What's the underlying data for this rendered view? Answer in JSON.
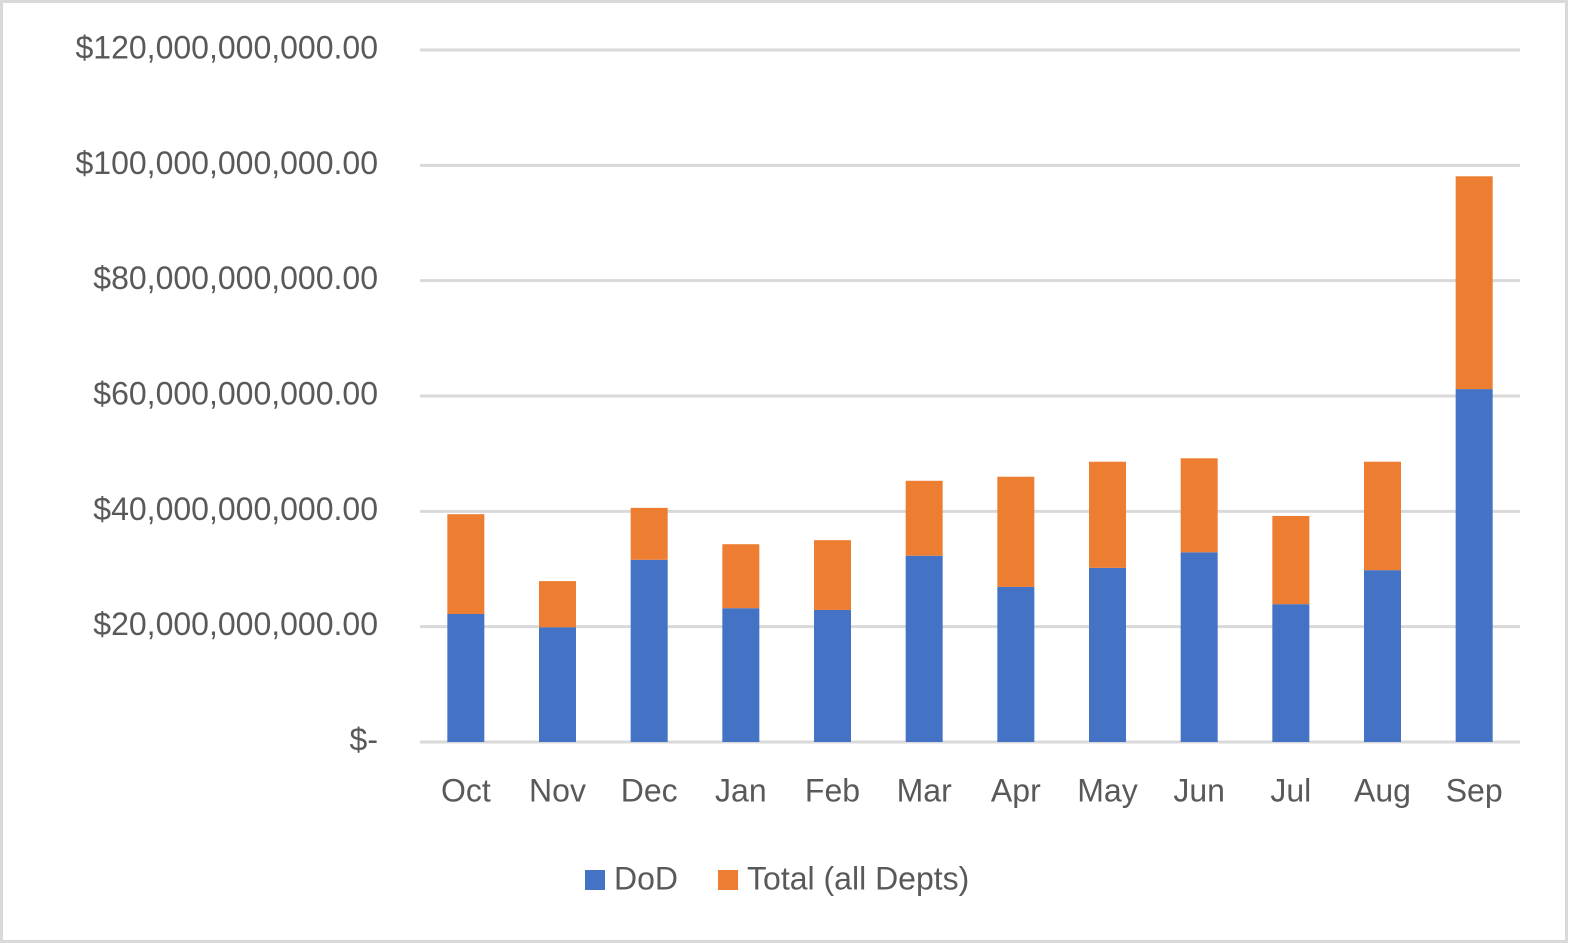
{
  "chart_data": {
    "type": "stacked_bar",
    "categories": [
      "Oct",
      "Nov",
      "Dec",
      "Jan",
      "Feb",
      "Mar",
      "Apr",
      "May",
      "Jun",
      "Jul",
      "Aug",
      "Sep"
    ],
    "series": [
      {
        "name": "DoD",
        "color": "#4472c4",
        "values": [
          22200000000,
          19900000000,
          31600000000,
          23200000000,
          22900000000,
          32300000000,
          26900000000,
          30200000000,
          32900000000,
          23900000000,
          29800000000,
          61200000000
        ]
      },
      {
        "name": "Total (all Depts)",
        "color": "#ed7d31",
        "values": [
          17300000000,
          8000000000,
          9000000000,
          11100000000,
          12100000000,
          13000000000,
          19100000000,
          18400000000,
          16300000000,
          15300000000,
          18800000000,
          36900000000
        ]
      }
    ],
    "ylim": [
      0,
      120000000000
    ],
    "yticks": [
      {
        "value": 0,
        "label": "$-"
      },
      {
        "value": 20000000000,
        "label": "$20,000,000,000.00"
      },
      {
        "value": 40000000000,
        "label": "$40,000,000,000.00"
      },
      {
        "value": 60000000000,
        "label": "$60,000,000,000.00"
      },
      {
        "value": 80000000000,
        "label": "$80,000,000,000.00"
      },
      {
        "value": 100000000000,
        "label": "$100,000,000,000.00"
      },
      {
        "value": 120000000000,
        "label": "$120,000,000,000.00"
      }
    ],
    "grid": true,
    "legend": "bottom"
  }
}
